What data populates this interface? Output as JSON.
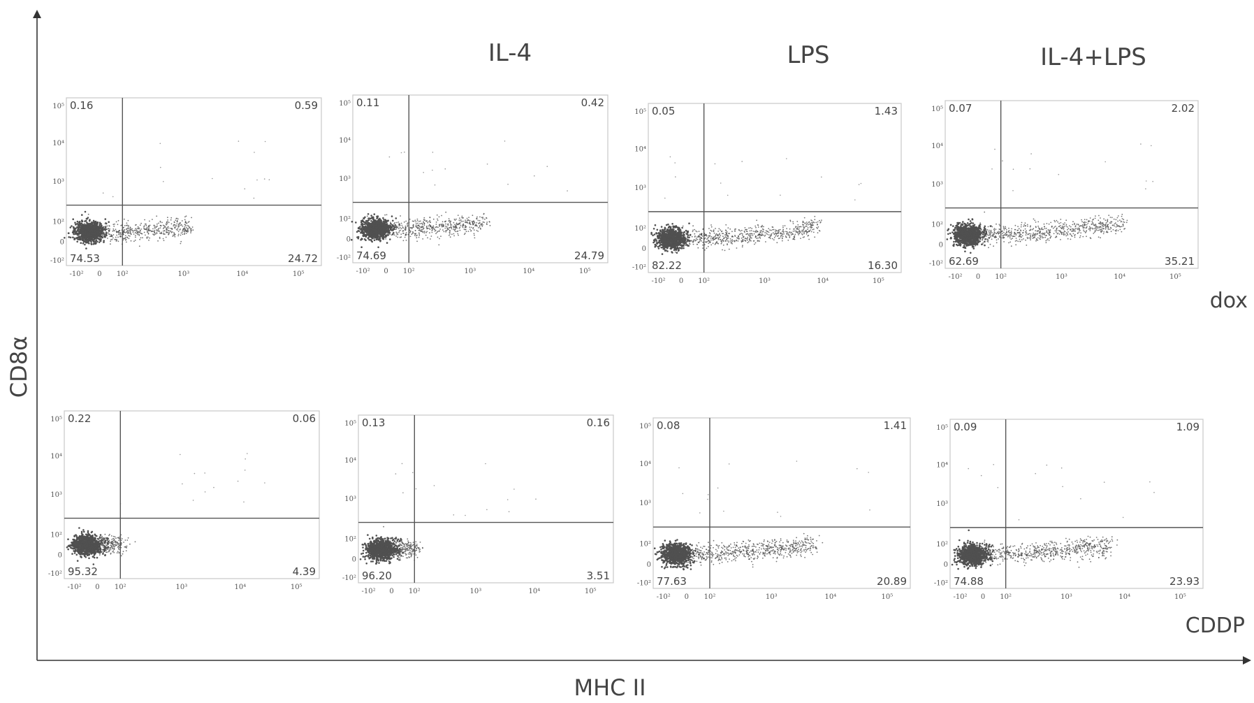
{
  "figure": {
    "column_titles": [
      "",
      "IL-4",
      "LPS",
      "IL-4+LPS"
    ],
    "row_labels": [
      "dox",
      "CDDP"
    ],
    "x_axis_title": "MHC II",
    "y_axis_title": "CD8α"
  },
  "chart_data": {
    "type": "scatter",
    "plot_kind": "flow cytometry quadrant dot plots",
    "xlabel": "MHC II",
    "ylabel": "CD8α",
    "x_ticks": [
      "-10²",
      "0",
      "10²",
      "10³",
      "10⁴",
      "10⁵"
    ],
    "y_ticks": [
      "-10²",
      "0",
      "10²",
      "10³",
      "10⁴",
      "10⁵"
    ],
    "panels": [
      {
        "row": "dox",
        "column": "",
        "quadrants": {
          "upper_left": "0.16",
          "upper_right": "0.59",
          "lower_left": "74.53",
          "lower_right": "24.72"
        },
        "spread": 0.55
      },
      {
        "row": "dox",
        "column": "IL-4",
        "quadrants": {
          "upper_left": "0.11",
          "upper_right": "0.42",
          "lower_left": "74.69",
          "lower_right": "24.79"
        },
        "spread": 0.6
      },
      {
        "row": "dox",
        "column": "LPS",
        "quadrants": {
          "upper_left": "0.05",
          "upper_right": "1.43",
          "lower_left": "82.22",
          "lower_right": "16.30"
        },
        "spread": 0.8
      },
      {
        "row": "dox",
        "column": "IL-4+LPS",
        "quadrants": {
          "upper_left": "0.07",
          "upper_right": "2.02",
          "lower_left": "62.69",
          "lower_right": "35.21"
        },
        "spread": 0.85
      },
      {
        "row": "CDDP",
        "column": "",
        "quadrants": {
          "upper_left": "0.22",
          "upper_right": "0.06",
          "lower_left": "95.32",
          "lower_right": "4.39"
        },
        "spread": 0.2
      },
      {
        "row": "CDDP",
        "column": "IL-4",
        "quadrants": {
          "upper_left": "0.13",
          "upper_right": "0.16",
          "lower_left": "96.20",
          "lower_right": "3.51"
        },
        "spread": 0.2
      },
      {
        "row": "CDDP",
        "column": "LPS",
        "quadrants": {
          "upper_left": "0.08",
          "upper_right": "1.41",
          "lower_left": "77.63",
          "lower_right": "20.89"
        },
        "spread": 0.75
      },
      {
        "row": "CDDP",
        "column": "IL-4+LPS",
        "quadrants": {
          "upper_left": "0.09",
          "upper_right": "1.09",
          "lower_left": "74.88",
          "lower_right": "23.93"
        },
        "spread": 0.75
      }
    ]
  }
}
